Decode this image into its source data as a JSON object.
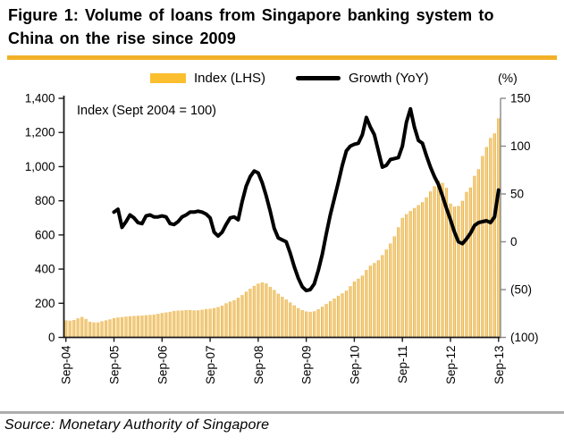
{
  "header": {
    "title": "Figure 1: Volume of loans from Singapore banking system to\nChina on the rise since 2009"
  },
  "legend": {
    "index_label": "Index (LHS)",
    "growth_label": "Growth (YoY)"
  },
  "source": "Source: Monetary Authority of Singapore",
  "colors": {
    "gold_rule": "#F1B127",
    "legend_swatch": "#FBBE2E",
    "bar_edge": "#E3A236",
    "bar_center": "#FADF96",
    "line": "#000000",
    "axis": "#1a1a1a",
    "right_axis": "#888888",
    "gray_rule": "#ADADAD"
  },
  "chart_data": {
    "type": "bar+line",
    "annotation": "Index (Sept 2004 = 100)",
    "x_tick_labels": [
      "Sep-04",
      "Sep-05",
      "Sep-06",
      "Sep-07",
      "Sep-08",
      "Sep-09",
      "Sep-10",
      "Sep-11",
      "Sep-12",
      "Sep-13"
    ],
    "x_tick_interval_months": 12,
    "left_axis": {
      "labels": [
        "0",
        "200",
        "400",
        "600",
        "800",
        "1,000",
        "1,200",
        "1,400"
      ],
      "min": 0,
      "max": 1400
    },
    "right_axis": {
      "labels": [
        "(100)",
        "(50)",
        "0",
        "50",
        "100",
        "150"
      ],
      "min": -100,
      "max": 150,
      "unit": "(%)"
    },
    "bars": {
      "name": "Index (LHS)",
      "start": "Sep-04",
      "frequency": "monthly",
      "values": [
        100,
        98,
        102,
        112,
        120,
        108,
        92,
        88,
        88,
        95,
        100,
        106,
        113,
        117,
        119,
        122,
        124,
        126,
        127,
        128,
        130,
        132,
        134,
        138,
        143,
        146,
        150,
        155,
        157,
        158,
        160,
        160,
        158,
        159,
        162,
        166,
        168,
        172,
        178,
        186,
        200,
        210,
        218,
        232,
        248,
        268,
        285,
        302,
        315,
        322,
        316,
        296,
        278,
        256,
        238,
        222,
        205,
        188,
        172,
        160,
        152,
        150,
        153,
        165,
        180,
        196,
        212,
        228,
        244,
        258,
        274,
        300,
        328,
        344,
        362,
        395,
        420,
        436,
        452,
        482,
        515,
        550,
        592,
        645,
        700,
        722,
        740,
        758,
        775,
        792,
        820,
        855,
        885,
        918,
        905,
        876,
        784,
        766,
        770,
        800,
        852,
        878,
        946,
        985,
        1062,
        1115,
        1168,
        1195,
        1283
      ]
    },
    "line": {
      "name": "Growth (YoY)",
      "start": "Sep-05",
      "start_index": 12,
      "values": [
        31,
        34,
        15,
        21,
        28,
        25,
        20,
        19,
        27,
        28,
        26,
        26,
        27,
        26,
        19,
        18,
        21,
        26,
        28,
        31,
        31,
        32,
        31,
        29,
        25,
        10,
        6,
        10,
        18,
        25,
        26,
        23,
        42,
        58,
        68,
        74,
        72,
        62,
        48,
        32,
        14,
        4,
        2,
        0,
        -12,
        -26,
        -38,
        -47,
        -51,
        -50,
        -44,
        -30,
        -13,
        8,
        28,
        45,
        62,
        80,
        95,
        100,
        102,
        103,
        112,
        130,
        120,
        112,
        95,
        78,
        80,
        86,
        87,
        88,
        100,
        125,
        139,
        120,
        106,
        103,
        90,
        78,
        68,
        60,
        48,
        35,
        23,
        10,
        0,
        -2,
        3,
        9,
        17,
        20,
        21,
        22,
        20,
        26,
        54
      ]
    }
  }
}
